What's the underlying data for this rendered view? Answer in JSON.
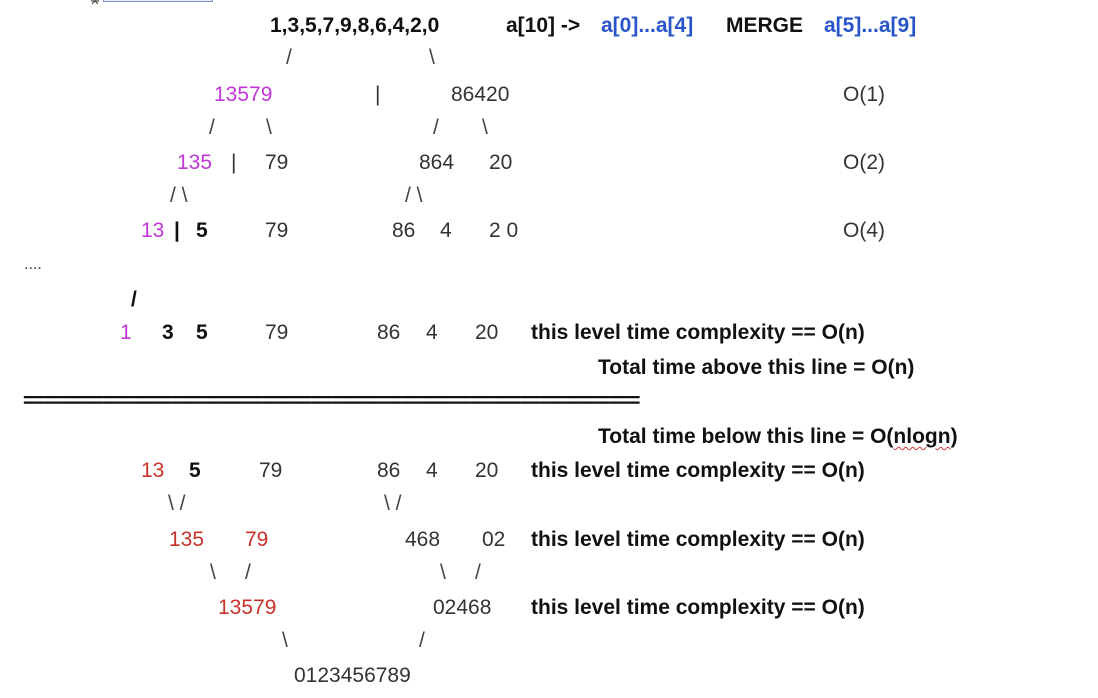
{
  "header": {
    "sequence": "1,3,5,7,9,8,6,4,2,0",
    "array": "a[10] ->",
    "first_half": "a[0]...a[4]",
    "merge_word": "MERGE",
    "second_half": "a[5]...a[9]"
  },
  "split": {
    "l1_left": "13579",
    "l1_bar": "|",
    "l1_right": "86420",
    "l1_cost": "O(1)",
    "l2_a": "135",
    "l2_bar": "|",
    "l2_b": "79",
    "l2_c": "864",
    "l2_d": "20",
    "l2_cost": "O(2)",
    "l3_a": "13",
    "l3_bar": "|",
    "l3_b": "5",
    "l3_c": "79",
    "l3_d": "86",
    "l3_e": "4",
    "l3_f": "2 0",
    "l3_cost": "O(4)",
    "ellipsis": "....",
    "leaf_a": "1",
    "leaf_b": "3",
    "leaf_c": "5",
    "leaf_d": "79",
    "leaf_e": "86",
    "leaf_f": "4",
    "leaf_g": "20",
    "leaf_note": "this level time complexity == O(n)",
    "total_above": "Total time above this line = O(n)"
  },
  "divider": "==============================================================",
  "merge": {
    "total_below_prefix": "Total time below this line = O(",
    "total_below_term": "nlogn",
    "total_below_suffix": ")",
    "m1_a": "13",
    "m1_b": "5",
    "m1_c": "79",
    "m1_d": "86",
    "m1_e": "4",
    "m1_f": "20",
    "m1_note": "this level time complexity == O(n)",
    "m2_a": "135",
    "m2_b": "79",
    "m2_c": "468",
    "m2_d": "02",
    "m2_note": "this level time complexity == O(n)",
    "m3_a": "13579",
    "m3_b": "02468",
    "m3_note": "this level time complexity == O(n)",
    "result": "0123456789"
  },
  "connectors": {
    "slash": "/",
    "backslash": "\\",
    "pair": "/ \\",
    "pair_in": "\\ /"
  },
  "colors": {
    "blue": "#2855c9",
    "magenta": "#c136d6",
    "red": "#c8312a"
  }
}
